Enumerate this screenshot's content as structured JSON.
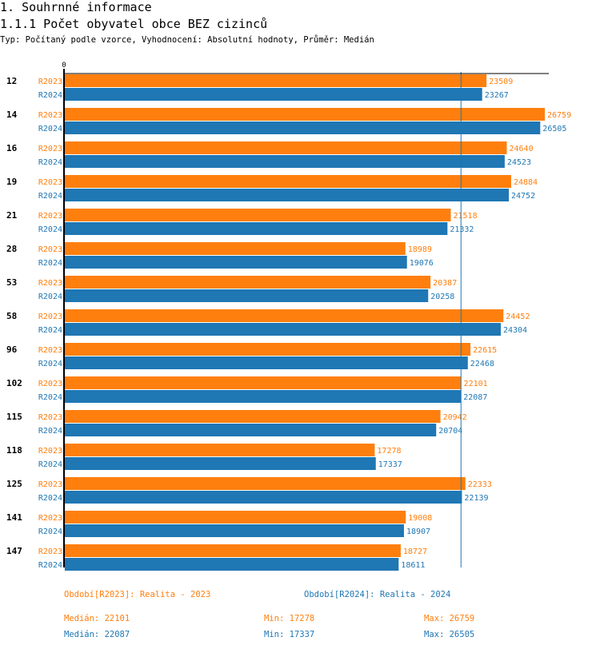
{
  "header": {
    "section_title": "1. Souhrnné informace",
    "chart_title": "1.1.1 Počet obyvatel obce BEZ cizinců",
    "subtitle": "Typ: Počítaný podle vzorce, Vyhodnocení: Absolutní hodnoty, Průměr: Medián"
  },
  "colors": {
    "R2023": "#ff7f0e",
    "R2024": "#1f77b4",
    "axis": "#000000",
    "category_label": "#000000"
  },
  "chart_data": {
    "type": "bar",
    "orientation": "horizontal",
    "title": "1.1.1 Počet obyvatel obce BEZ cizinců",
    "xlabel": "",
    "ylabel": "",
    "x_tick_labels": [
      "0"
    ],
    "xlim": [
      0,
      26759
    ],
    "grid": false,
    "categories": [
      "12",
      "14",
      "16",
      "19",
      "21",
      "28",
      "53",
      "58",
      "96",
      "102",
      "115",
      "118",
      "125",
      "141",
      "147"
    ],
    "series": [
      {
        "name": "R2023",
        "color": "#ff7f0e",
        "values": [
          23509,
          26759,
          24640,
          24884,
          21518,
          18989,
          20387,
          24452,
          22615,
          22101,
          20942,
          17278,
          22333,
          19008,
          18727
        ]
      },
      {
        "name": "R2024",
        "color": "#1f77b4",
        "values": [
          23267,
          26505,
          24523,
          24752,
          21332,
          19076,
          20258,
          24304,
          22468,
          22087,
          20704,
          17337,
          22139,
          18907,
          18611
        ]
      }
    ],
    "reference_lines": [
      {
        "name": "Medián R2024",
        "value": 22087,
        "color": "#1f77b4"
      }
    ],
    "legend": [
      {
        "label": "Období[R2023]: Realita - 2023",
        "color": "#ff7f0e"
      },
      {
        "label": "Období[R2024]: Realita - 2024",
        "color": "#1f77b4"
      }
    ],
    "legend_position": "bottom",
    "stats": [
      {
        "series": "R2023",
        "median": "Medián: 22101",
        "min": "Min: 17278",
        "max": "Max: 26759"
      },
      {
        "series": "R2024",
        "median": "Medián: 22087",
        "min": "Min: 17337",
        "max": "Max: 26505"
      }
    ]
  }
}
